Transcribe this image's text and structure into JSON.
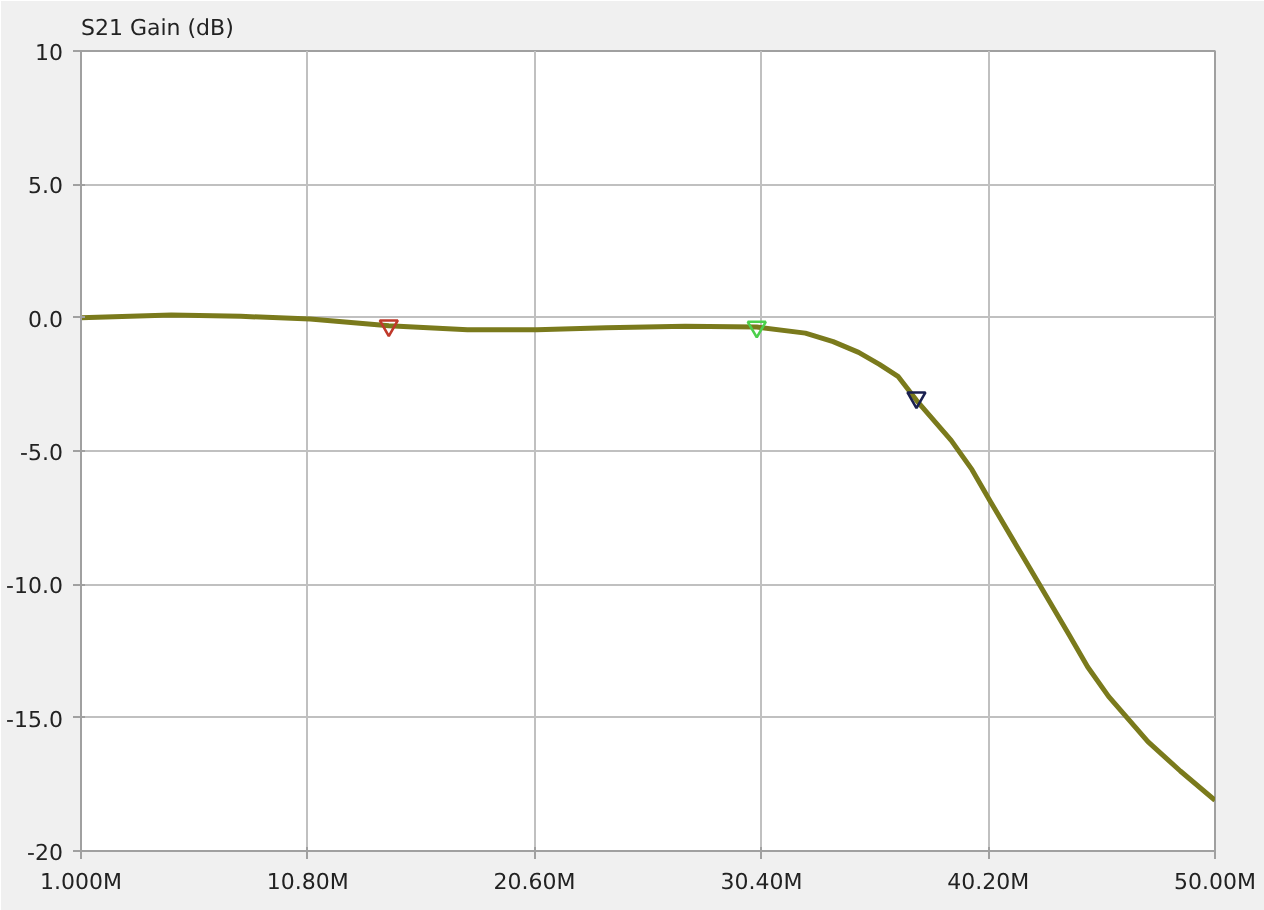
{
  "chart_data": {
    "type": "line",
    "ylabel": "S21 Gain (dB)",
    "xlim": [
      1,
      50
    ],
    "ylim": [
      -20,
      10
    ],
    "xticks": [
      {
        "value": 1,
        "label": "1.000M"
      },
      {
        "value": 10.8,
        "label": "10.80M"
      },
      {
        "value": 20.6,
        "label": "20.60M"
      },
      {
        "value": 30.4,
        "label": "30.40M"
      },
      {
        "value": 40.2,
        "label": "40.20M"
      },
      {
        "value": 50,
        "label": "50.00M"
      }
    ],
    "yticks": [
      {
        "value": -20,
        "label": "-20"
      },
      {
        "value": -15,
        "label": "-15.0"
      },
      {
        "value": -10,
        "label": "-10.0"
      },
      {
        "value": -5,
        "label": "-5.0"
      },
      {
        "value": 0,
        "label": "0.0"
      },
      {
        "value": 5,
        "label": "5.0"
      },
      {
        "value": 10,
        "label": "10"
      }
    ],
    "grid": true,
    "marker": "none",
    "line_style": "solid",
    "series": [
      {
        "color": "#7a7a1c",
        "x": [
          1,
          4.9,
          7.9,
          10.9,
          14.3,
          17.7,
          20.7,
          23.7,
          27.1,
          30.2,
          32.3,
          33.5,
          34.6,
          35.5,
          36.3,
          37.1,
          38.6,
          39.5,
          40.3,
          42.0,
          43.7,
          44.5,
          45.4,
          47.1,
          48.5,
          50
        ],
        "values": [
          0.0,
          0.1,
          0.05,
          -0.05,
          -0.3,
          -0.45,
          -0.45,
          -0.38,
          -0.32,
          -0.35,
          -0.58,
          -0.9,
          -1.3,
          -1.75,
          -2.2,
          -3.1,
          -4.6,
          -5.7,
          -6.9,
          -9.4,
          -11.9,
          -13.1,
          -14.2,
          -15.9,
          -17.0,
          -18.1
        ]
      },
      {
        "type": "scatter",
        "marker": "triangle",
        "color": "#c0392b",
        "x": [
          14.3
        ],
        "values": [
          -0.3
        ]
      },
      {
        "type": "scatter",
        "marker": "triangle",
        "color": "#4cd04c",
        "x": [
          30.2
        ],
        "values": [
          -0.35
        ]
      },
      {
        "type": "scatter",
        "marker": "triangle",
        "color": "#1a2050",
        "x": [
          37.1
        ],
        "values": [
          -3.0
        ]
      }
    ]
  }
}
